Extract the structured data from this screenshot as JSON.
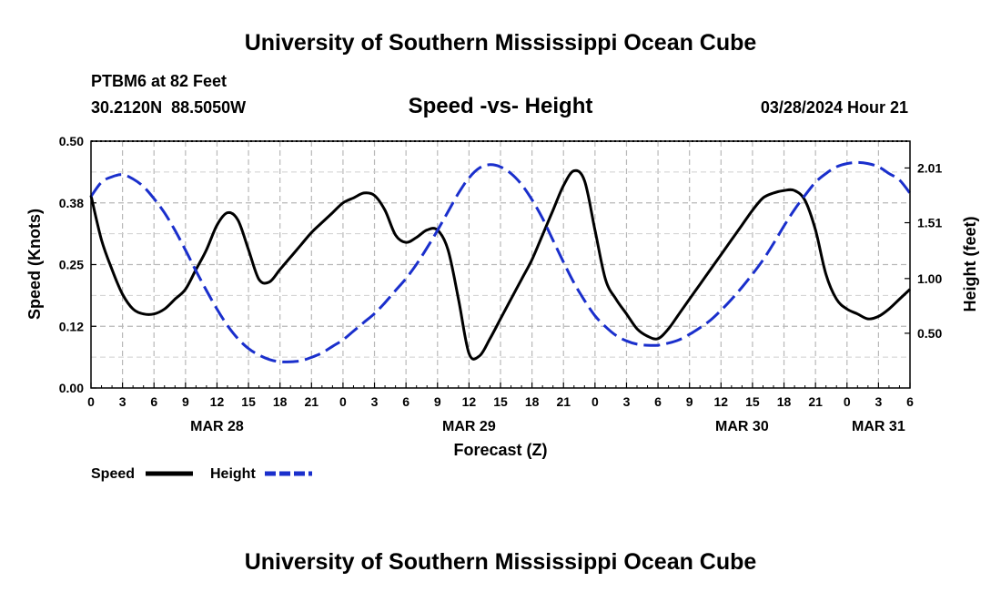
{
  "header": {
    "title": "University of Southern Mississippi Ocean Cube",
    "station": "PTBM6 at 82 Feet",
    "coords": "30.2120N  88.5050W",
    "chart_title": "Speed -vs- Height",
    "date": "03/28/2024 Hour 21"
  },
  "footer": {
    "title": "University of Southern Mississippi Ocean Cube"
  },
  "chart_data": {
    "type": "line",
    "title": "Speed -vs- Height",
    "xlabel": "Forecast (Z)",
    "ylabel": "Speed (Knots)",
    "y2label": "Height (feet)",
    "x_tick_labels": [
      "0",
      "3",
      "6",
      "9",
      "12",
      "15",
      "18",
      "21",
      "0",
      "3",
      "6",
      "9",
      "12",
      "15",
      "18",
      "21",
      "0",
      "3",
      "6",
      "9",
      "12",
      "15",
      "18",
      "21",
      "0",
      "3",
      "6"
    ],
    "x_range_hours": [
      0,
      78
    ],
    "day_labels": [
      {
        "label": "MAR 28",
        "hour": 12
      },
      {
        "label": "MAR 29",
        "hour": 36
      },
      {
        "label": "MAR 30",
        "hour": 62
      },
      {
        "label": "MAR 31",
        "hour": 75
      }
    ],
    "ylim": [
      0,
      0.5
    ],
    "y_tick_labels": [
      "0.00",
      "0.12",
      "0.25",
      "0.38",
      "0.50"
    ],
    "y_ticks": [
      0,
      0.125,
      0.25,
      0.375,
      0.5
    ],
    "y2lim": [
      0.0,
      2.255
    ],
    "y2_tick_labels": [
      "0.50",
      "1.00",
      "1.51",
      "2.01"
    ],
    "y2_ticks": [
      0.5,
      1.0,
      1.51,
      2.01
    ],
    "grid": true,
    "series": [
      {
        "name": "Speed",
        "axis": "left",
        "color": "#000000",
        "style": "solid",
        "x": [
          0,
          1,
          2,
          3,
          4,
          5,
          6,
          7,
          8,
          9,
          10,
          11,
          12,
          13,
          14,
          15,
          16,
          17,
          18,
          19,
          20,
          21,
          22,
          23,
          24,
          25,
          26,
          27,
          28,
          29,
          30,
          31,
          32,
          33,
          34,
          35,
          36,
          37,
          38,
          39,
          40,
          41,
          42,
          43,
          44,
          45,
          46,
          47,
          48,
          49,
          50,
          51,
          52,
          53,
          54,
          55,
          56,
          57,
          58,
          59,
          60,
          61,
          62,
          63,
          64,
          65,
          66,
          67,
          68,
          69,
          70,
          71,
          72,
          73,
          74,
          75,
          76,
          77,
          78
        ],
        "values": [
          0.39,
          0.3,
          0.24,
          0.19,
          0.16,
          0.15,
          0.15,
          0.16,
          0.18,
          0.2,
          0.24,
          0.28,
          0.33,
          0.355,
          0.34,
          0.28,
          0.22,
          0.215,
          0.24,
          0.265,
          0.29,
          0.315,
          0.335,
          0.355,
          0.375,
          0.385,
          0.395,
          0.39,
          0.36,
          0.31,
          0.295,
          0.305,
          0.32,
          0.32,
          0.28,
          0.18,
          0.07,
          0.065,
          0.1,
          0.14,
          0.18,
          0.22,
          0.26,
          0.31,
          0.36,
          0.41,
          0.44,
          0.42,
          0.32,
          0.22,
          0.18,
          0.15,
          0.12,
          0.105,
          0.1,
          0.12,
          0.15,
          0.18,
          0.21,
          0.24,
          0.27,
          0.3,
          0.33,
          0.36,
          0.385,
          0.395,
          0.4,
          0.4,
          0.38,
          0.32,
          0.23,
          0.18,
          0.16,
          0.15,
          0.14,
          0.145,
          0.16,
          0.18,
          0.2
        ]
      },
      {
        "name": "Height",
        "axis": "right",
        "color": "#1a2fcc",
        "style": "dashed",
        "x": [
          0,
          1,
          2,
          3,
          4,
          5,
          6,
          7,
          8,
          9,
          10,
          11,
          12,
          13,
          14,
          15,
          16,
          17,
          18,
          19,
          20,
          21,
          22,
          23,
          24,
          25,
          26,
          27,
          28,
          29,
          30,
          31,
          32,
          33,
          34,
          35,
          36,
          37,
          38,
          39,
          40,
          41,
          42,
          43,
          44,
          45,
          46,
          47,
          48,
          49,
          50,
          51,
          52,
          53,
          54,
          55,
          56,
          57,
          58,
          59,
          60,
          61,
          62,
          63,
          64,
          65,
          66,
          67,
          68,
          69,
          70,
          71,
          72,
          73,
          74,
          75,
          76,
          77,
          78
        ],
        "values": [
          1.75,
          1.88,
          1.93,
          1.95,
          1.91,
          1.84,
          1.73,
          1.6,
          1.44,
          1.26,
          1.07,
          0.89,
          0.72,
          0.57,
          0.45,
          0.36,
          0.3,
          0.26,
          0.24,
          0.24,
          0.25,
          0.28,
          0.32,
          0.38,
          0.44,
          0.52,
          0.6,
          0.68,
          0.78,
          0.89,
          1.0,
          1.13,
          1.28,
          1.44,
          1.61,
          1.78,
          1.92,
          2.01,
          2.04,
          2.02,
          1.96,
          1.86,
          1.72,
          1.55,
          1.35,
          1.15,
          0.96,
          0.8,
          0.66,
          0.56,
          0.48,
          0.43,
          0.4,
          0.39,
          0.39,
          0.41,
          0.44,
          0.49,
          0.55,
          0.62,
          0.71,
          0.81,
          0.92,
          1.04,
          1.17,
          1.32,
          1.48,
          1.63,
          1.76,
          1.88,
          1.96,
          2.02,
          2.05,
          2.06,
          2.05,
          2.02,
          1.96,
          1.9,
          1.78
        ]
      }
    ],
    "legend": [
      {
        "label": "Speed",
        "color": "#000000",
        "style": "solid"
      },
      {
        "label": "Height",
        "color": "#1a2fcc",
        "style": "dashed"
      }
    ]
  }
}
